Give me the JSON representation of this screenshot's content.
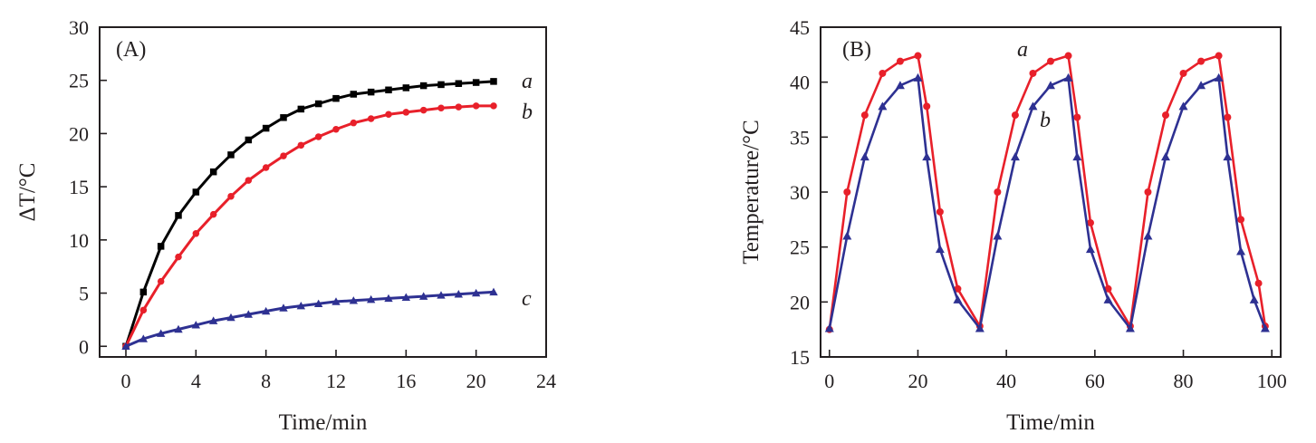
{
  "chart_data": [
    {
      "type": "line",
      "panel_label": "(A)",
      "xlabel": "Time/min",
      "ylabel": "ΔT/°C",
      "xlim": [
        -1.5,
        24
      ],
      "ylim": [
        -1,
        30
      ],
      "xticks": [
        "0",
        "4",
        "8",
        "12",
        "16",
        "20",
        "24"
      ],
      "yticks": [
        "0",
        "5",
        "10",
        "15",
        "20",
        "25",
        "30"
      ],
      "grid": false,
      "x": [
        0,
        1,
        2,
        3,
        4,
        5,
        6,
        7,
        8,
        9,
        10,
        11,
        12,
        13,
        14,
        15,
        16,
        17,
        18,
        19,
        20,
        21
      ],
      "series": [
        {
          "name": "a",
          "color": "#000000",
          "marker": "square",
          "values": [
            0,
            5.1,
            9.4,
            12.3,
            14.5,
            16.4,
            18.0,
            19.4,
            20.5,
            21.5,
            22.3,
            22.8,
            23.3,
            23.7,
            23.9,
            24.1,
            24.3,
            24.5,
            24.6,
            24.7,
            24.8,
            24.9
          ]
        },
        {
          "name": "b",
          "color": "#e8202a",
          "marker": "circle",
          "values": [
            0,
            3.4,
            6.1,
            8.4,
            10.6,
            12.4,
            14.1,
            15.6,
            16.8,
            17.9,
            18.9,
            19.7,
            20.4,
            21.0,
            21.4,
            21.8,
            22.0,
            22.2,
            22.4,
            22.5,
            22.6,
            22.6
          ]
        },
        {
          "name": "c",
          "color": "#2e3192",
          "marker": "triangle",
          "values": [
            0,
            0.7,
            1.2,
            1.6,
            2.0,
            2.4,
            2.7,
            3.0,
            3.3,
            3.6,
            3.8,
            4.0,
            4.2,
            4.3,
            4.4,
            4.5,
            4.6,
            4.7,
            4.8,
            4.9,
            5.0,
            5.1
          ]
        }
      ]
    },
    {
      "type": "line",
      "panel_label": "(B)",
      "xlabel": "Time/min",
      "ylabel": "Temperature/°C",
      "xlim": [
        -2,
        102
      ],
      "ylim": [
        15,
        45
      ],
      "xticks": [
        "0",
        "20",
        "40",
        "60",
        "80",
        "100"
      ],
      "yticks": [
        "15",
        "20",
        "25",
        "30",
        "35",
        "40",
        "45"
      ],
      "grid": false,
      "series": [
        {
          "name": "a",
          "color": "#e8202a",
          "marker": "circle",
          "x": [
            0,
            4,
            8,
            12,
            16,
            20,
            22,
            25,
            29,
            34,
            38,
            42,
            46,
            50,
            54,
            56,
            59,
            63,
            68,
            72,
            76,
            80,
            84,
            88,
            90,
            93,
            97,
            98.5
          ],
          "values": [
            17.5,
            30.0,
            37.0,
            40.8,
            41.9,
            42.4,
            37.8,
            28.2,
            21.2,
            17.8,
            30.0,
            37.0,
            40.8,
            41.9,
            42.4,
            36.8,
            27.2,
            21.2,
            17.8,
            30.0,
            37.0,
            40.8,
            41.9,
            42.4,
            36.8,
            27.5,
            21.7,
            17.8
          ]
        },
        {
          "name": "b",
          "color": "#2e3192",
          "marker": "triangle",
          "x": [
            0,
            4,
            8,
            12,
            16,
            20,
            22,
            25,
            29,
            34,
            38,
            42,
            46,
            50,
            54,
            56,
            59,
            63,
            68,
            72,
            76,
            80,
            84,
            88,
            90,
            93,
            96,
            98.5
          ],
          "values": [
            17.6,
            26.0,
            33.2,
            37.8,
            39.7,
            40.4,
            33.2,
            24.8,
            20.2,
            17.6,
            26.0,
            33.2,
            37.8,
            39.7,
            40.4,
            33.2,
            24.8,
            20.2,
            17.6,
            26.0,
            33.2,
            37.8,
            39.7,
            40.4,
            33.2,
            24.6,
            20.2,
            17.6
          ]
        }
      ]
    }
  ]
}
